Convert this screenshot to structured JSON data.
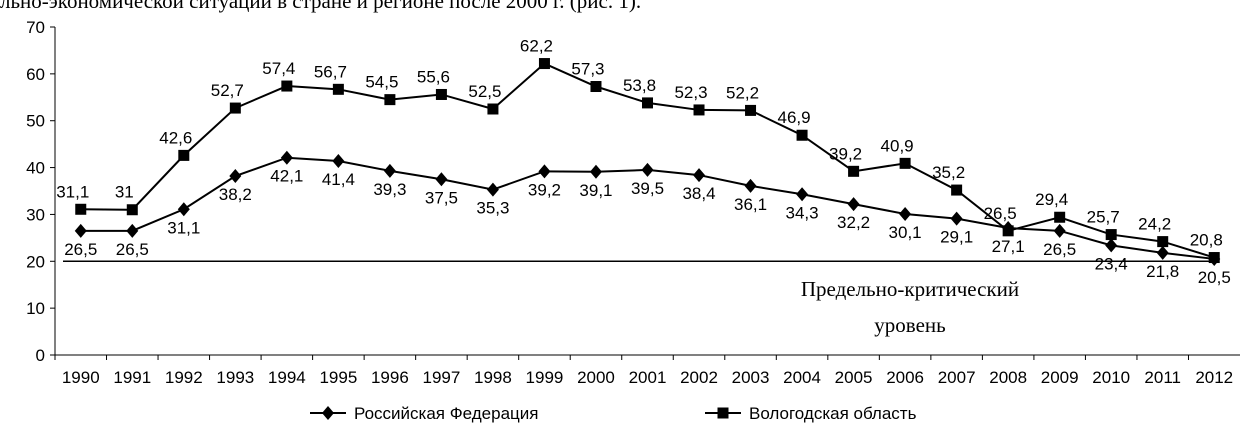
{
  "caption": "льно-экономической ситуации в стране и регионе после 2000 г. (рис. 1).",
  "chart_data": {
    "type": "line",
    "categories": [
      "1990",
      "1991",
      "1992",
      "1993",
      "1994",
      "1995",
      "1996",
      "1997",
      "1998",
      "1999",
      "2000",
      "2001",
      "2002",
      "2003",
      "2004",
      "2005",
      "2006",
      "2007",
      "2008",
      "2009",
      "2010",
      "2011",
      "2012"
    ],
    "series": [
      {
        "name": "Российская Федерация",
        "color": "#000000",
        "marker": "diamond",
        "values": [
          26.5,
          26.5,
          31.1,
          38.2,
          42.1,
          41.4,
          39.3,
          37.5,
          35.3,
          39.2,
          39.1,
          39.5,
          38.4,
          36.1,
          34.3,
          32.2,
          30.1,
          29.1,
          27.1,
          26.5,
          23.4,
          21.8,
          20.5
        ],
        "value_labels": [
          "26,5",
          "26,5",
          "31,1",
          "38,2",
          "42,1",
          "41,4",
          "39,3",
          "37,5",
          "35,3",
          "39,2",
          "39,1",
          "39,5",
          "38,4",
          "36,1",
          "34,3",
          "32,2",
          "30,1",
          "29,1",
          "27,1",
          "26,5",
          "23,4",
          "21,8",
          "20,5"
        ]
      },
      {
        "name": "Вологодская область",
        "color": "#000000",
        "marker": "square",
        "values": [
          31.1,
          31,
          42.6,
          52.7,
          57.4,
          56.7,
          54.5,
          55.6,
          52.5,
          62.2,
          57.3,
          53.8,
          52.3,
          52.2,
          46.9,
          39.2,
          40.9,
          35.2,
          26.5,
          29.4,
          25.7,
          24.2,
          20.8
        ],
        "value_labels": [
          "31,1",
          "31",
          "42,6",
          "52,7",
          "57,4",
          "56,7",
          "54,5",
          "55,6",
          "52,5",
          "62,2",
          "57,3",
          "53,8",
          "52,3",
          "52,2",
          "46,9",
          "39,2",
          "40,9",
          "35,2",
          "26,5",
          "29,4",
          "25,7",
          "24,2",
          "20,8"
        ]
      }
    ],
    "ylim": [
      0,
      70
    ],
    "yticks": [
      0,
      10,
      20,
      30,
      40,
      50,
      60,
      70
    ],
    "grid": false,
    "threshold": 20,
    "annotation": [
      "Предельно-критический",
      "уровень"
    ],
    "legend": "bottom"
  }
}
